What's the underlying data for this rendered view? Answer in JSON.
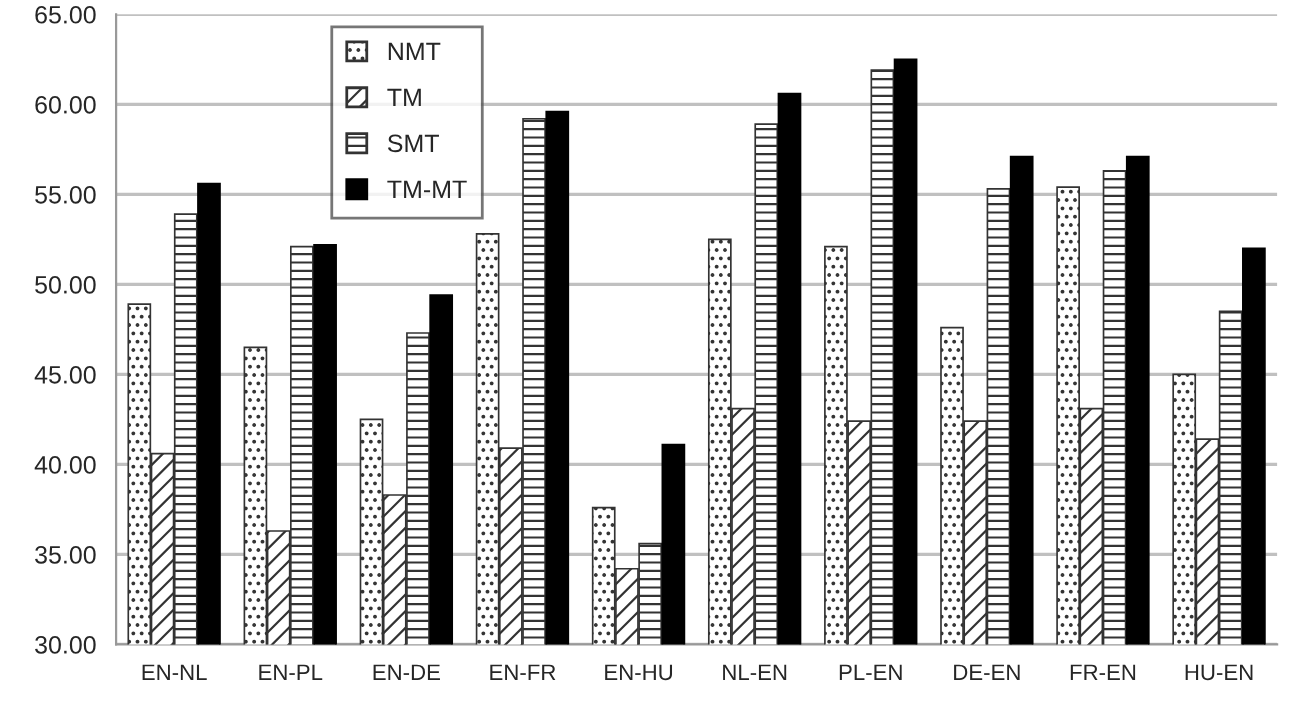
{
  "chart_data": {
    "type": "bar",
    "categories": [
      "EN-NL",
      "EN-PL",
      "EN-DE",
      "EN-FR",
      "EN-HU",
      "NL-EN",
      "PL-EN",
      "DE-EN",
      "FR-EN",
      "HU-EN"
    ],
    "series": [
      {
        "name": "NMT",
        "color": "#333333",
        "values": [
          48.9,
          46.5,
          42.5,
          52.8,
          37.6,
          52.5,
          52.1,
          47.6,
          55.4,
          45.0
        ]
      },
      {
        "name": "TM",
        "color": "#333333",
        "values": [
          40.6,
          36.3,
          38.3,
          40.9,
          34.2,
          43.1,
          42.4,
          42.4,
          43.1,
          41.4
        ]
      },
      {
        "name": "SMT",
        "color": "#333333",
        "values": [
          53.9,
          52.1,
          47.3,
          59.2,
          35.6,
          58.9,
          61.9,
          55.3,
          56.3,
          48.5
        ]
      },
      {
        "name": "TM-MT",
        "color": "#000000",
        "values": [
          55.6,
          52.2,
          49.4,
          59.6,
          41.1,
          60.6,
          62.5,
          57.1,
          57.1,
          52.0
        ]
      }
    ],
    "ylim": [
      30,
      65
    ],
    "yticks": [
      {
        "value": 30,
        "label": "30.00"
      },
      {
        "value": 35,
        "label": "35.00"
      },
      {
        "value": 40,
        "label": "40.00"
      },
      {
        "value": 45,
        "label": "45.00"
      },
      {
        "value": 50,
        "label": "50.00"
      },
      {
        "value": 55,
        "label": "55.00"
      },
      {
        "value": 60,
        "label": "60.00"
      },
      {
        "value": 65,
        "label": "65.00"
      }
    ],
    "grid": "y",
    "legend": "top left"
  }
}
